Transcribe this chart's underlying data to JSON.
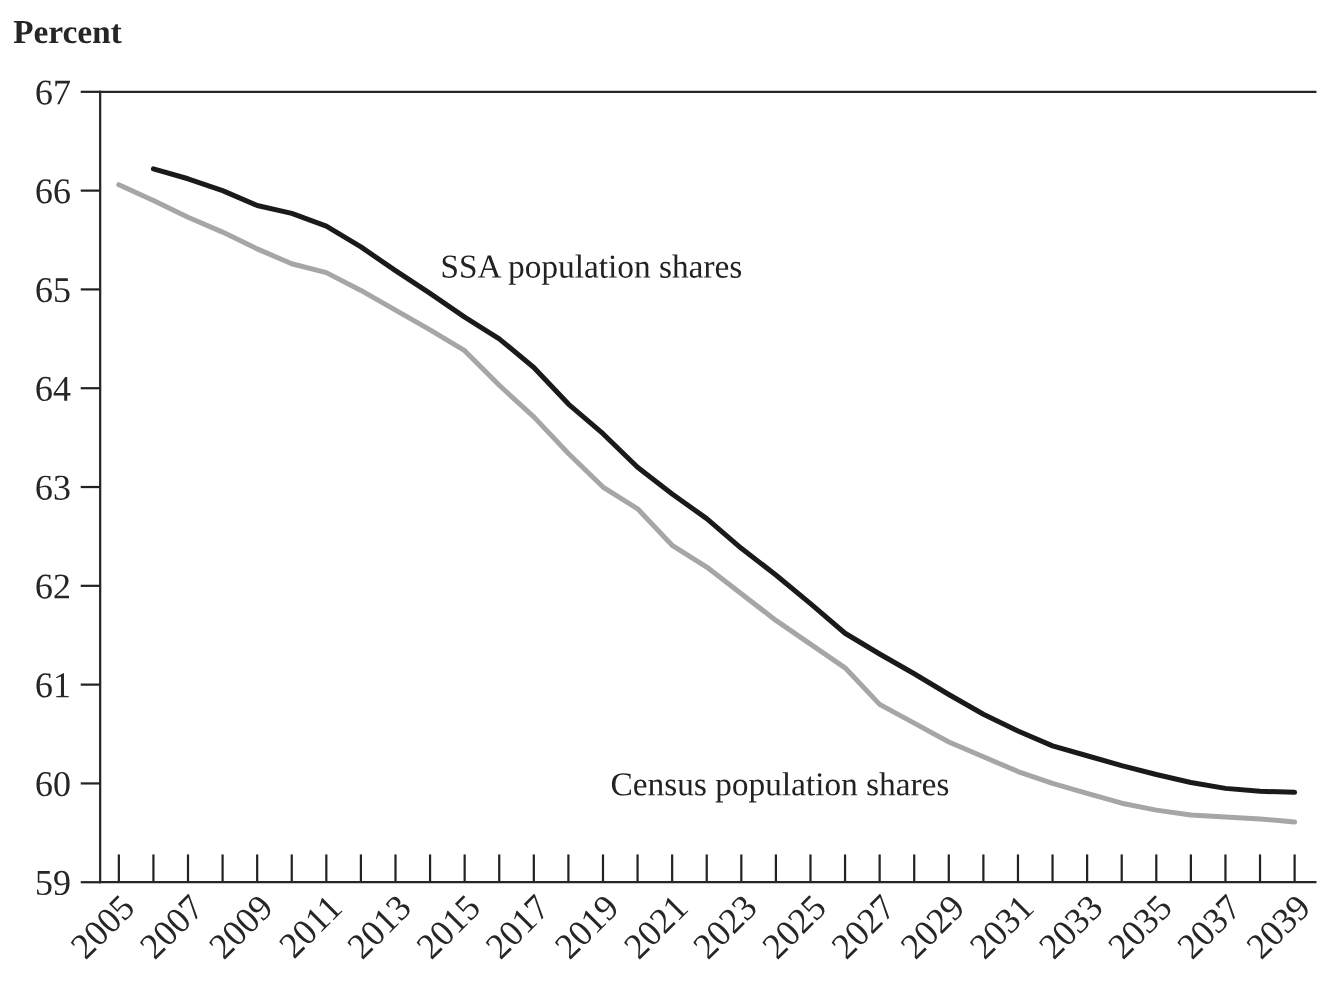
{
  "chart_data": {
    "type": "line",
    "ylabel": "Percent",
    "x": [
      2005,
      2006,
      2007,
      2008,
      2009,
      2010,
      2011,
      2012,
      2013,
      2014,
      2015,
      2016,
      2017,
      2018,
      2019,
      2020,
      2021,
      2022,
      2023,
      2024,
      2025,
      2026,
      2027,
      2028,
      2029,
      2030,
      2031,
      2032,
      2033,
      2034,
      2035,
      2036,
      2037,
      2038,
      2039
    ],
    "series": [
      {
        "name": "SSA population shares",
        "color": "#1a1a1a",
        "values": [
          null,
          66.22,
          66.12,
          66.0,
          65.85,
          65.77,
          65.64,
          65.43,
          65.19,
          64.96,
          64.72,
          64.5,
          64.21,
          63.84,
          63.54,
          63.2,
          62.93,
          62.68,
          62.38,
          62.11,
          61.82,
          61.52,
          61.31,
          61.11,
          60.9,
          60.7,
          60.53,
          60.38,
          60.28,
          60.18,
          60.09,
          60.01,
          59.95,
          59.92,
          59.91
        ]
      },
      {
        "name": "Census population shares",
        "color": "#a6a6a6",
        "values": [
          66.06,
          65.9,
          65.73,
          65.58,
          65.41,
          65.26,
          65.17,
          64.99,
          64.79,
          64.59,
          64.38,
          64.03,
          63.71,
          63.34,
          63.0,
          62.78,
          62.41,
          62.19,
          61.92,
          61.65,
          61.41,
          61.17,
          60.8,
          60.61,
          60.42,
          60.27,
          60.12,
          60.0,
          59.9,
          59.8,
          59.73,
          59.68,
          59.66,
          59.64,
          59.61
        ]
      }
    ],
    "xlim": [
      2004.46,
      2039.6
    ],
    "ylim": [
      59,
      67
    ],
    "xticks": [
      {
        "value": 2005,
        "label": "2005"
      },
      {
        "value": 2006,
        "label": null
      },
      {
        "value": 2007,
        "label": "2007"
      },
      {
        "value": 2008,
        "label": null
      },
      {
        "value": 2009,
        "label": "2009"
      },
      {
        "value": 2010,
        "label": null
      },
      {
        "value": 2011,
        "label": "2011"
      },
      {
        "value": 2012,
        "label": null
      },
      {
        "value": 2013,
        "label": "2013"
      },
      {
        "value": 2014,
        "label": null
      },
      {
        "value": 2015,
        "label": "2015"
      },
      {
        "value": 2016,
        "label": null
      },
      {
        "value": 2017,
        "label": "2017"
      },
      {
        "value": 2018,
        "label": null
      },
      {
        "value": 2019,
        "label": "2019"
      },
      {
        "value": 2020,
        "label": null
      },
      {
        "value": 2021,
        "label": "2021"
      },
      {
        "value": 2022,
        "label": null
      },
      {
        "value": 2023,
        "label": "2023"
      },
      {
        "value": 2024,
        "label": null
      },
      {
        "value": 2025,
        "label": "2025"
      },
      {
        "value": 2026,
        "label": null
      },
      {
        "value": 2027,
        "label": "2027"
      },
      {
        "value": 2028,
        "label": null
      },
      {
        "value": 2029,
        "label": "2029"
      },
      {
        "value": 2030,
        "label": null
      },
      {
        "value": 2031,
        "label": "2031"
      },
      {
        "value": 2032,
        "label": null
      },
      {
        "value": 2033,
        "label": "2033"
      },
      {
        "value": 2034,
        "label": null
      },
      {
        "value": 2035,
        "label": "2035"
      },
      {
        "value": 2036,
        "label": null
      },
      {
        "value": 2037,
        "label": "2037"
      },
      {
        "value": 2038,
        "label": null
      },
      {
        "value": 2039,
        "label": "2039"
      }
    ],
    "yticks": [
      59,
      60,
      61,
      62,
      63,
      64,
      65,
      66,
      67
    ],
    "grid": false,
    "legend": false,
    "marker": "none",
    "line_style": "solid"
  }
}
